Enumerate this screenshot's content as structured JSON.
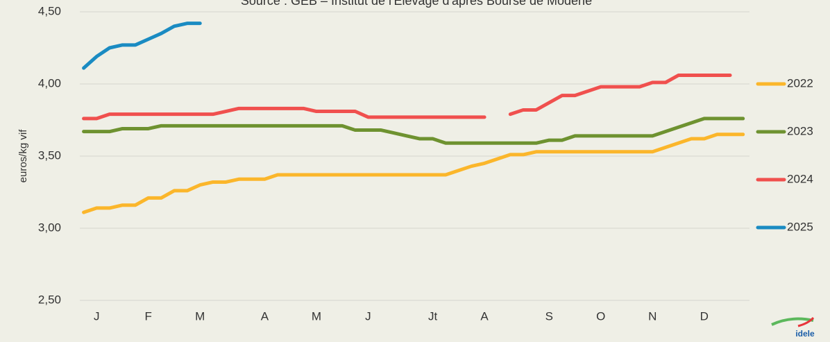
{
  "chart_data": {
    "type": "line",
    "title": "Source : GEB – Institut de l'Elevage d'après Bourse de Modène",
    "y_label": "euros/kg vif",
    "logo": "idele",
    "x": [
      1,
      2,
      3,
      4,
      5,
      6,
      7,
      8,
      9,
      10,
      11,
      12,
      13,
      14,
      15,
      16,
      17,
      18,
      19,
      20,
      21,
      22,
      23,
      24,
      25,
      26,
      27,
      28,
      29,
      30,
      31,
      32,
      33,
      34,
      35,
      36,
      37,
      38,
      39,
      40,
      41,
      42,
      43,
      44,
      45,
      46,
      47,
      48,
      49,
      50,
      51,
      52
    ],
    "xlim": [
      0.7,
      52.5
    ],
    "xticks": [
      {
        "value": 2,
        "label": "J"
      },
      {
        "value": 6,
        "label": "F"
      },
      {
        "value": 10,
        "label": "M"
      },
      {
        "value": 15,
        "label": "A"
      },
      {
        "value": 19,
        "label": "M"
      },
      {
        "value": 23,
        "label": "J"
      },
      {
        "value": 28,
        "label": "Jt"
      },
      {
        "value": 32,
        "label": "A"
      },
      {
        "value": 37,
        "label": "S"
      },
      {
        "value": 41,
        "label": "O"
      },
      {
        "value": 45,
        "label": "N"
      },
      {
        "value": 49,
        "label": "D"
      }
    ],
    "ylim": [
      2.5,
      4.5
    ],
    "yticks": [
      {
        "value": 2.5,
        "label": "2,50"
      },
      {
        "value": 3,
        "label": "3,00"
      },
      {
        "value": 3.5,
        "label": "3,50"
      },
      {
        "value": 4,
        "label": "4,00"
      },
      {
        "value": 4.5,
        "label": "4,50"
      }
    ],
    "grid": true,
    "legend": "right",
    "series": [
      {
        "name": "2022",
        "color": "#fbb62b",
        "values": [
          3.11,
          3.14,
          3.14,
          3.16,
          3.16,
          3.21,
          3.21,
          3.26,
          3.26,
          3.3,
          3.32,
          3.32,
          3.34,
          3.34,
          3.34,
          3.37,
          3.37,
          3.37,
          3.37,
          3.37,
          3.37,
          3.37,
          3.37,
          3.37,
          3.37,
          3.37,
          3.37,
          3.37,
          3.37,
          3.4,
          3.43,
          3.45,
          3.48,
          3.51,
          3.51,
          3.53,
          3.53,
          3.53,
          3.53,
          3.53,
          3.53,
          3.53,
          3.53,
          3.53,
          3.53,
          3.56,
          3.59,
          3.62,
          3.62,
          3.65,
          3.65,
          3.65
        ]
      },
      {
        "name": "2023",
        "color": "#6e9230",
        "values": [
          3.67,
          3.67,
          3.67,
          3.69,
          3.69,
          3.69,
          3.71,
          3.71,
          3.71,
          3.71,
          3.71,
          3.71,
          3.71,
          3.71,
          3.71,
          3.71,
          3.71,
          3.71,
          3.71,
          3.71,
          3.71,
          3.68,
          3.68,
          3.68,
          3.66,
          3.64,
          3.62,
          3.62,
          3.59,
          3.59,
          3.59,
          3.59,
          3.59,
          3.59,
          3.59,
          3.59,
          3.61,
          3.61,
          3.64,
          3.64,
          3.64,
          3.64,
          3.64,
          3.64,
          3.64,
          3.67,
          3.7,
          3.73,
          3.76,
          3.76,
          3.76,
          3.76
        ]
      },
      {
        "name": "2024",
        "color": "#f0504e",
        "values": [
          3.76,
          3.76,
          3.79,
          3.79,
          3.79,
          3.79,
          3.79,
          3.79,
          3.79,
          3.79,
          3.79,
          3.81,
          3.83,
          3.83,
          3.83,
          3.83,
          3.83,
          3.83,
          3.81,
          3.81,
          3.81,
          3.81,
          3.77,
          3.77,
          3.77,
          3.77,
          3.77,
          3.77,
          3.77,
          3.77,
          3.77,
          3.77,
          null,
          3.79,
          3.82,
          3.82,
          3.87,
          3.92,
          3.92,
          3.95,
          3.98,
          3.98,
          3.98,
          3.98,
          4.01,
          4.01,
          4.06,
          4.06,
          4.06,
          4.06,
          4.06,
          null
        ]
      },
      {
        "name": "2025",
        "color": "#1a8bc2",
        "values": [
          4.11,
          4.19,
          4.25,
          4.27,
          4.27,
          4.31,
          4.35,
          4.4,
          4.42,
          4.42,
          null,
          null,
          null,
          null,
          null,
          null,
          null,
          null,
          null,
          null,
          null,
          null,
          null,
          null,
          null,
          null,
          null,
          null,
          null,
          null,
          null,
          null,
          null,
          null,
          null,
          null,
          null,
          null,
          null,
          null,
          null,
          null,
          null,
          null,
          null,
          null,
          null,
          null,
          null,
          null,
          null,
          null
        ]
      }
    ]
  }
}
